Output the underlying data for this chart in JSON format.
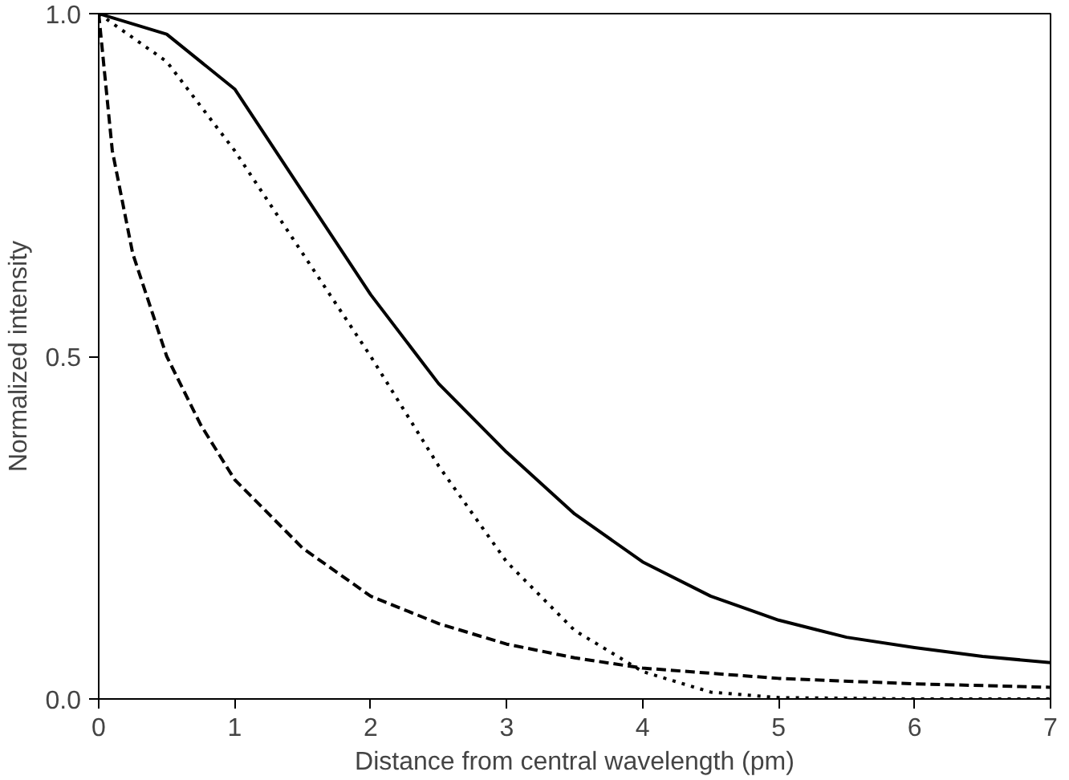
{
  "chart_data": {
    "type": "line",
    "xlabel": "Distance from central wavelength (pm)",
    "ylabel": "Normalized intensity",
    "xlim": [
      0,
      7
    ],
    "ylim": [
      0,
      1
    ],
    "xticks": [
      0,
      1,
      2,
      3,
      4,
      5,
      6,
      7
    ],
    "yticks": [
      {
        "value": 0,
        "label": "0.0"
      },
      0.5,
      {
        "value": 1,
        "label": "1.0"
      }
    ],
    "grid": false,
    "series": [
      {
        "color": "#000000",
        "line_style": "solid",
        "x": [
          0,
          0.5,
          1,
          1.5,
          2,
          2.5,
          3,
          3.5,
          4,
          4.5,
          5,
          5.5,
          6,
          6.5,
          7
        ],
        "values": [
          1.0,
          0.97,
          0.89,
          0.74,
          0.59,
          0.46,
          0.36,
          0.27,
          0.2,
          0.15,
          0.115,
          0.09,
          0.075,
          0.062,
          0.053
        ]
      },
      {
        "color": "#000000",
        "line_style": "dotted",
        "x": [
          0,
          0.5,
          1,
          1.5,
          2,
          2.5,
          3,
          3.5,
          4,
          4.5,
          5,
          6,
          7
        ],
        "values": [
          1.0,
          0.93,
          0.8,
          0.65,
          0.5,
          0.34,
          0.2,
          0.1,
          0.04,
          0.01,
          0.002,
          0,
          0
        ]
      },
      {
        "color": "#000000",
        "line_style": "dashed",
        "x": [
          0,
          0.1,
          0.25,
          0.5,
          0.75,
          1,
          1.5,
          2,
          2.5,
          3,
          3.5,
          4,
          5,
          6,
          7
        ],
        "values": [
          1.0,
          0.8,
          0.65,
          0.5,
          0.4,
          0.32,
          0.22,
          0.15,
          0.11,
          0.08,
          0.06,
          0.045,
          0.03,
          0.022,
          0.017
        ]
      }
    ]
  }
}
